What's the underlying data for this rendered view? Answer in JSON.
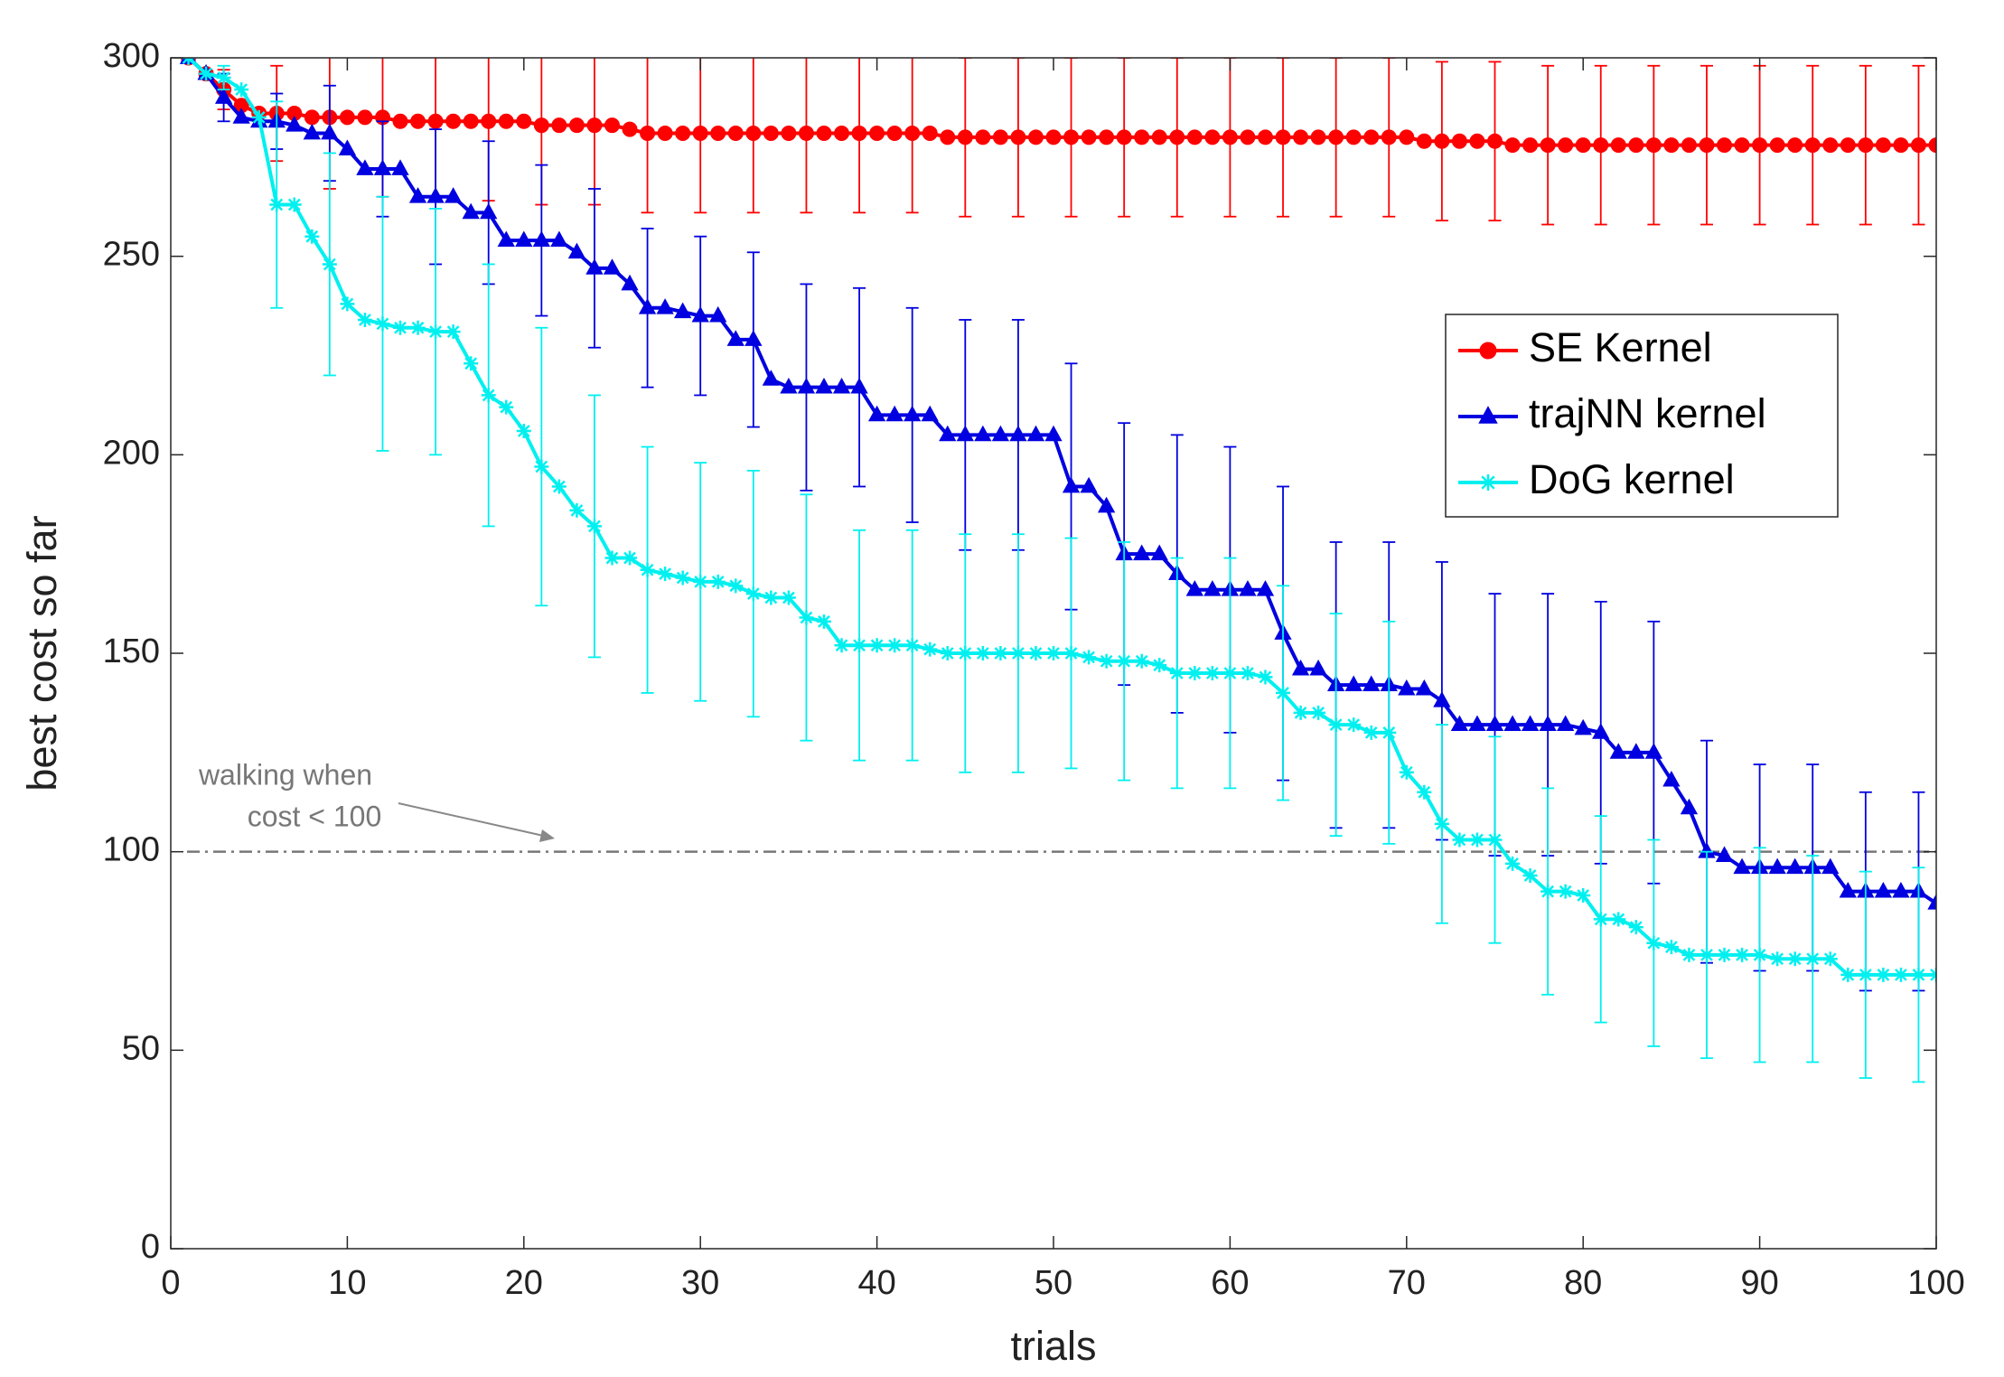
{
  "chart_data": {
    "type": "line",
    "xlabel": "trials",
    "ylabel": "best cost so far",
    "xlim": [
      0,
      100
    ],
    "ylim": [
      0,
      300
    ],
    "xticks": [
      0,
      10,
      20,
      30,
      40,
      50,
      60,
      70,
      80,
      90,
      100
    ],
    "yticks": [
      0,
      50,
      100,
      150,
      200,
      250,
      300
    ],
    "legend": "northeast",
    "hline": 100,
    "annotation": [
      "walking when",
      "cost < 100"
    ],
    "x": [
      1,
      2,
      3,
      4,
      5,
      6,
      7,
      8,
      9,
      10,
      11,
      12,
      13,
      14,
      15,
      16,
      17,
      18,
      19,
      20,
      21,
      22,
      23,
      24,
      25,
      26,
      27,
      28,
      29,
      30,
      31,
      32,
      33,
      34,
      35,
      36,
      37,
      38,
      39,
      40,
      41,
      42,
      43,
      44,
      45,
      46,
      47,
      48,
      49,
      50,
      51,
      52,
      53,
      54,
      55,
      56,
      57,
      58,
      59,
      60,
      61,
      62,
      63,
      64,
      65,
      66,
      67,
      68,
      69,
      70,
      71,
      72,
      73,
      74,
      75,
      76,
      77,
      78,
      79,
      80,
      81,
      82,
      83,
      84,
      85,
      86,
      87,
      88,
      89,
      90,
      91,
      92,
      93,
      94,
      95,
      96,
      97,
      98,
      99,
      100
    ],
    "series": [
      {
        "name": "SE Kernel",
        "color": "#ff0000",
        "marker": "circle",
        "values": [
          300,
          296,
          292,
          288,
          286,
          286,
          286,
          285,
          285,
          285,
          285,
          285,
          284,
          284,
          284,
          284,
          284,
          284,
          284,
          284,
          283,
          283,
          283,
          283,
          283,
          282,
          281,
          281,
          281,
          281,
          281,
          281,
          281,
          281,
          281,
          281,
          281,
          281,
          281,
          281,
          281,
          281,
          281,
          280,
          280,
          280,
          280,
          280,
          280,
          280,
          280,
          280,
          280,
          280,
          280,
          280,
          280,
          280,
          280,
          280,
          280,
          280,
          280,
          280,
          280,
          280,
          280,
          280,
          280,
          280,
          279,
          279,
          279,
          279,
          279,
          278,
          278,
          278,
          278,
          278,
          278,
          278,
          278,
          278,
          278,
          278,
          278,
          278,
          278,
          278,
          278,
          278,
          278,
          278,
          278,
          278,
          278,
          278,
          278,
          278
        ],
        "errors": [
          null,
          null,
          5,
          null,
          null,
          12,
          null,
          null,
          18,
          null,
          null,
          20,
          null,
          null,
          20,
          null,
          null,
          20,
          null,
          null,
          20,
          null,
          null,
          20,
          null,
          null,
          20,
          null,
          null,
          20,
          null,
          null,
          20,
          null,
          null,
          20,
          null,
          null,
          20,
          null,
          null,
          20,
          null,
          null,
          20,
          null,
          null,
          20,
          null,
          null,
          20,
          null,
          null,
          20,
          null,
          null,
          20,
          null,
          null,
          20,
          null,
          null,
          20,
          null,
          null,
          20,
          null,
          null,
          20,
          null,
          null,
          20,
          null,
          null,
          20,
          null,
          null,
          20,
          null,
          null,
          20,
          null,
          null,
          20,
          null,
          null,
          20,
          null,
          null,
          20,
          null,
          null,
          20,
          null,
          null,
          20,
          null,
          null,
          20,
          null
        ]
      },
      {
        "name": "trajNN kernel",
        "color": "#0000e0",
        "marker": "triangle",
        "values": [
          300,
          296,
          290,
          285,
          284,
          284,
          283,
          281,
          281,
          277,
          272,
          272,
          272,
          265,
          265,
          265,
          261,
          261,
          254,
          254,
          254,
          254,
          251,
          247,
          247,
          243,
          237,
          237,
          236,
          235,
          235,
          229,
          229,
          219,
          217,
          217,
          217,
          217,
          217,
          210,
          210,
          210,
          210,
          205,
          205,
          205,
          205,
          205,
          205,
          205,
          192,
          192,
          187,
          175,
          175,
          175,
          170,
          166,
          166,
          166,
          166,
          166,
          155,
          146,
          146,
          142,
          142,
          142,
          142,
          141,
          141,
          138,
          132,
          132,
          132,
          132,
          132,
          132,
          132,
          131,
          130,
          125,
          125,
          125,
          118,
          111,
          100,
          99,
          96,
          96,
          96,
          96,
          96,
          96,
          90,
          90,
          90,
          90,
          90,
          87
        ],
        "errors": [
          null,
          null,
          6,
          null,
          null,
          7,
          null,
          null,
          12,
          null,
          null,
          12,
          null,
          null,
          17,
          null,
          null,
          18,
          null,
          null,
          19,
          null,
          null,
          20,
          null,
          null,
          20,
          null,
          null,
          20,
          null,
          null,
          22,
          null,
          null,
          26,
          null,
          null,
          25,
          null,
          null,
          27,
          null,
          null,
          29,
          null,
          null,
          29,
          null,
          null,
          31,
          null,
          null,
          33,
          null,
          null,
          35,
          null,
          null,
          36,
          null,
          null,
          37,
          null,
          null,
          36,
          null,
          null,
          36,
          null,
          null,
          35,
          null,
          null,
          33,
          null,
          null,
          33,
          null,
          null,
          33,
          null,
          null,
          33,
          null,
          null,
          28,
          null,
          null,
          26,
          null,
          null,
          26,
          null,
          null,
          25,
          null,
          null,
          25,
          null
        ]
      },
      {
        "name": "DoG kernel",
        "color": "#00f0f0",
        "marker": "asterisk",
        "values": [
          300,
          296,
          295,
          292,
          285,
          263,
          263,
          255,
          248,
          238,
          234,
          233,
          232,
          232,
          231,
          231,
          223,
          215,
          212,
          206,
          197,
          192,
          186,
          182,
          174,
          174,
          171,
          170,
          169,
          168,
          168,
          167,
          165,
          164,
          164,
          159,
          158,
          152,
          152,
          152,
          152,
          152,
          151,
          150,
          150,
          150,
          150,
          150,
          150,
          150,
          150,
          149,
          148,
          148,
          148,
          147,
          145,
          145,
          145,
          145,
          145,
          144,
          140,
          135,
          135,
          132,
          132,
          130,
          130,
          120,
          115,
          107,
          103,
          103,
          103,
          97,
          94,
          90,
          90,
          89,
          83,
          83,
          81,
          77,
          76,
          74,
          74,
          74,
          74,
          74,
          73,
          73,
          73,
          73,
          69,
          69,
          69,
          69,
          69,
          69
        ],
        "errors": [
          null,
          null,
          3,
          null,
          null,
          26,
          null,
          null,
          28,
          null,
          null,
          32,
          null,
          null,
          31,
          null,
          null,
          33,
          null,
          null,
          35,
          null,
          null,
          33,
          null,
          null,
          31,
          null,
          null,
          30,
          null,
          null,
          31,
          null,
          null,
          31,
          null,
          null,
          29,
          null,
          null,
          29,
          null,
          null,
          30,
          null,
          null,
          30,
          null,
          null,
          29,
          null,
          null,
          30,
          null,
          null,
          29,
          null,
          null,
          29,
          null,
          null,
          27,
          null,
          null,
          28,
          null,
          null,
          28,
          null,
          null,
          25,
          null,
          null,
          26,
          null,
          null,
          26,
          null,
          null,
          26,
          null,
          null,
          26,
          null,
          null,
          26,
          null,
          null,
          27,
          null,
          null,
          26,
          null,
          null,
          26,
          null,
          null,
          27,
          null
        ]
      }
    ]
  }
}
